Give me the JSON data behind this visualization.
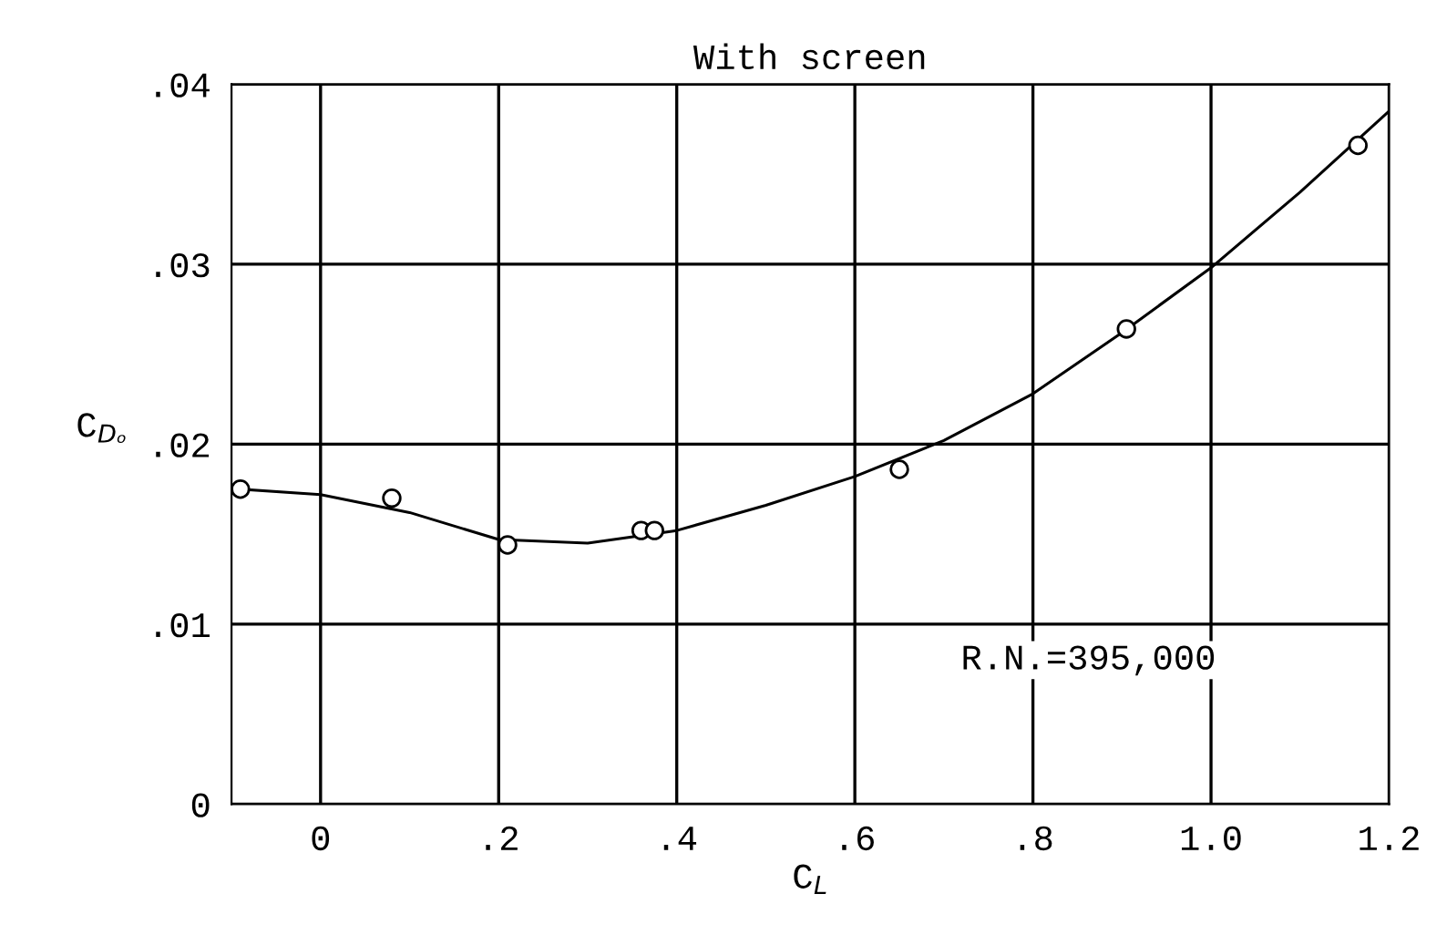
{
  "chart_data": {
    "type": "scatter",
    "title": "With screen",
    "xlabel": "C$_{L}$",
    "ylabel": "C$_{Dₒ}$",
    "annotations": [
      "R.N.=395,000"
    ],
    "series": [
      {
        "color": "#000000",
        "x": [
          -0.09,
          0.08,
          0.21,
          0.36,
          0.375,
          0.65,
          0.905,
          1.165
        ],
        "values": [
          0.0175,
          0.017,
          0.0144,
          0.0152,
          0.0152,
          0.0186,
          0.0264,
          0.0366
        ]
      },
      {
        "type": "line",
        "marker": "none",
        "color": "#000000",
        "x": [
          -0.09,
          0.0,
          0.1,
          0.2,
          0.3,
          0.4,
          0.5,
          0.6,
          0.7,
          0.8,
          0.9,
          1.0,
          1.1,
          1.2
        ],
        "values": [
          0.0175,
          0.0172,
          0.0162,
          0.0147,
          0.0145,
          0.0152,
          0.0166,
          0.0182,
          0.0202,
          0.0228,
          0.0262,
          0.0298,
          0.034,
          0.0385
        ]
      }
    ],
    "xlim": [
      -0.1,
      1.2
    ],
    "ylim": [
      0,
      0.04
    ],
    "xticks": [
      {
        "value": 0,
        "label": "0"
      },
      {
        "value": 0.2,
        "label": ".2"
      },
      {
        "value": 0.4,
        "label": ".4"
      },
      {
        "value": 0.6,
        "label": ".6"
      },
      {
        "value": 0.8,
        "label": ".8"
      },
      {
        "value": 1.0,
        "label": "1.0"
      },
      {
        "value": 1.2,
        "label": "1.2"
      }
    ],
    "yticks": [
      {
        "value": 0,
        "label": "0"
      },
      {
        "value": 0.01,
        "label": ".01"
      },
      {
        "value": 0.02,
        "label": ".02"
      },
      {
        "value": 0.03,
        "label": ".03"
      },
      {
        "value": 0.04,
        "label": ".04"
      }
    ],
    "grid": true,
    "marker": "circle"
  }
}
